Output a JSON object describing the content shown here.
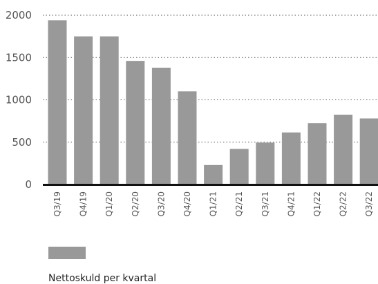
{
  "chart_data": {
    "type": "bar",
    "categories": [
      "Q3/19",
      "Q4/19",
      "Q1/20",
      "Q2/20",
      "Q3/20",
      "Q4/20",
      "Q1/21",
      "Q2/21",
      "Q3/21",
      "Q4/21",
      "Q1/22",
      "Q2/22",
      "Q3/22"
    ],
    "series": [
      {
        "name": "Nettoskuld per kvartal",
        "values": [
          1940,
          1750,
          1750,
          1460,
          1380,
          1100,
          230,
          420,
          495,
          615,
          725,
          825,
          780
        ]
      }
    ],
    "ylim": [
      0,
      2000
    ],
    "yticks": [
      "0",
      "500",
      "1000",
      "1500",
      "2000"
    ],
    "grid": true,
    "legend_position": "bottom-left",
    "colors": {
      "bar": "#999999",
      "axis": "#111111",
      "grid": "#555555"
    }
  }
}
